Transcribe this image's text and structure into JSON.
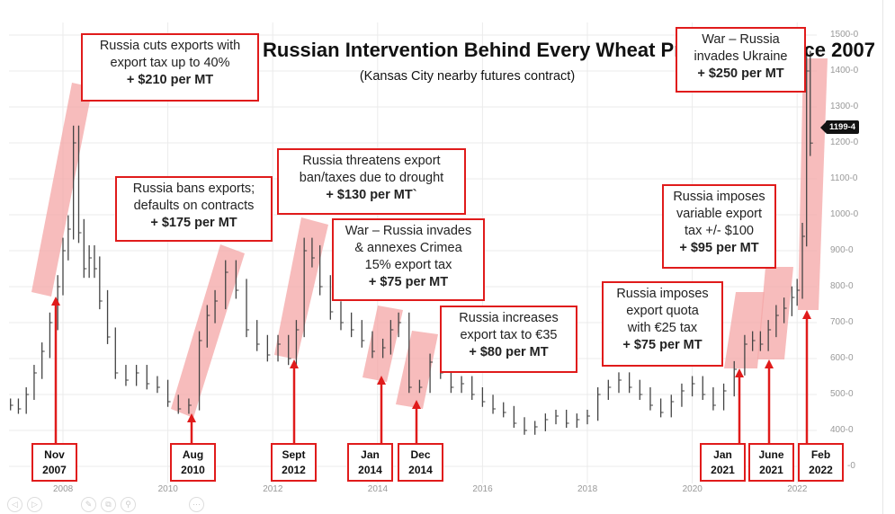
{
  "chart_data": {
    "type": "bar",
    "subtype": "ohlc-price",
    "title": "Russian Intervention Behind Every Wheat Price Spike Since 2007",
    "subtitle": "(Kansas City nearby futures contract)",
    "xlim": [
      2006.95,
      2022.45
    ],
    "ylim": [
      300,
      1520
    ],
    "y_ticks": [
      "1500-0",
      "1400-0",
      "1300-0",
      "1200-0",
      "1100-0",
      "1000-0",
      "900-0",
      "800-0",
      "700-0",
      "600-0",
      "500-0",
      "400-0",
      "-0"
    ],
    "y_tick_values": [
      1500,
      1400,
      1300,
      1200,
      1100,
      1000,
      900,
      800,
      700,
      600,
      500,
      400,
      300
    ],
    "x_ticks": [
      "2008",
      "2010",
      "2012",
      "2014",
      "2016",
      "2018",
      "2020",
      "2022"
    ],
    "x_tick_values": [
      2008,
      2010,
      2012,
      2014,
      2016,
      2018,
      2020,
      2022
    ],
    "grid": true,
    "last_price_label": "1199-4",
    "series": [
      {
        "x": [
          2007.0,
          2007.15,
          2007.3,
          2007.45,
          2007.6,
          2007.75,
          2007.9,
          2008.0,
          2008.1,
          2008.2,
          2008.3,
          2008.4,
          2008.5,
          2008.6,
          2008.7,
          2008.85,
          2009.0,
          2009.2,
          2009.4,
          2009.6,
          2009.8,
          2010.0,
          2010.2,
          2010.4,
          2010.6,
          2010.75,
          2010.9,
          2011.1,
          2011.3,
          2011.5,
          2011.7,
          2011.9,
          2012.1,
          2012.3,
          2012.45,
          2012.6,
          2012.75,
          2012.9,
          2013.1,
          2013.3,
          2013.5,
          2013.7,
          2013.9,
          2014.1,
          2014.25,
          2014.4,
          2014.6,
          2014.8,
          2015.0,
          2015.2,
          2015.4,
          2015.6,
          2015.8,
          2016.0,
          2016.2,
          2016.4,
          2016.6,
          2016.8,
          2017.0,
          2017.2,
          2017.4,
          2017.6,
          2017.8,
          2018.0,
          2018.2,
          2018.4,
          2018.6,
          2018.8,
          2019.0,
          2019.2,
          2019.4,
          2019.6,
          2019.8,
          2020.0,
          2020.2,
          2020.4,
          2020.6,
          2020.8,
          2021.0,
          2021.15,
          2021.3,
          2021.45,
          2021.6,
          2021.75,
          2021.9,
          2022.0,
          2022.1,
          2022.18,
          2022.25
        ],
        "values": [
          470,
          460,
          500,
          560,
          620,
          700,
          800,
          900,
          960,
          1200,
          950,
          850,
          880,
          850,
          760,
          660,
          560,
          540,
          560,
          530,
          520,
          480,
          460,
          470,
          650,
          720,
          760,
          840,
          790,
          680,
          640,
          610,
          640,
          600,
          680,
          900,
          880,
          800,
          730,
          700,
          680,
          650,
          620,
          630,
          680,
          700,
          520,
          520,
          590,
          560,
          520,
          530,
          500,
          480,
          460,
          450,
          420,
          400,
          410,
          430,
          440,
          420,
          430,
          440,
          500,
          520,
          540,
          520,
          500,
          470,
          450,
          480,
          510,
          530,
          500,
          470,
          510,
          570,
          640,
          650,
          640,
          680,
          720,
          740,
          770,
          790,
          940,
          1400,
          1199.5
        ]
      }
    ],
    "annotations": [
      {
        "lines": [
          "Russia cuts exports with",
          "export tax up to 40%"
        ],
        "impact": "+ $210 per MT"
      },
      {
        "lines": [
          "Russia bans exports;",
          "defaults on contracts"
        ],
        "impact": "+ $175 per MT"
      },
      {
        "lines": [
          "Russia threatens export",
          "ban/taxes due to drought"
        ],
        "impact": "+ $130 per MT`"
      },
      {
        "lines": [
          "War – Russia invades",
          "& annexes Crimea",
          "15% export tax"
        ],
        "impact": "+ $75 per MT"
      },
      {
        "lines": [
          "Russia increases",
          "export tax to €35"
        ],
        "impact": "+ $80 per MT"
      },
      {
        "lines": [
          "Russia imposes",
          "export quota",
          "with €25 tax"
        ],
        "impact": "+ $75 per MT"
      },
      {
        "lines": [
          "Russia imposes",
          "variable export",
          "tax +/- $100"
        ],
        "impact": "+ $95 per MT"
      },
      {
        "lines": [
          "War – Russia",
          "invades Ukraine"
        ],
        "impact": "+ $250 per MT"
      }
    ],
    "event_dates": [
      {
        "month": "Nov",
        "year": "2007"
      },
      {
        "month": "Aug",
        "year": "2010"
      },
      {
        "month": "Sept",
        "year": "2012"
      },
      {
        "month": "Jan",
        "year": "2014"
      },
      {
        "month": "Dec",
        "year": "2014"
      },
      {
        "month": "Jan",
        "year": "2021"
      },
      {
        "month": "June",
        "year": "2021"
      },
      {
        "month": "Feb",
        "year": "2022"
      }
    ],
    "colors": {
      "bars": "#444444",
      "highlight": "#f4a6a6",
      "annotation_border": "#e01b1b",
      "arrow": "#e01b1b"
    }
  },
  "toolbar": {
    "icons": [
      "previous-icon",
      "next-icon",
      "pen-icon",
      "copy-icon",
      "zoom-icon",
      "more-icon"
    ]
  }
}
